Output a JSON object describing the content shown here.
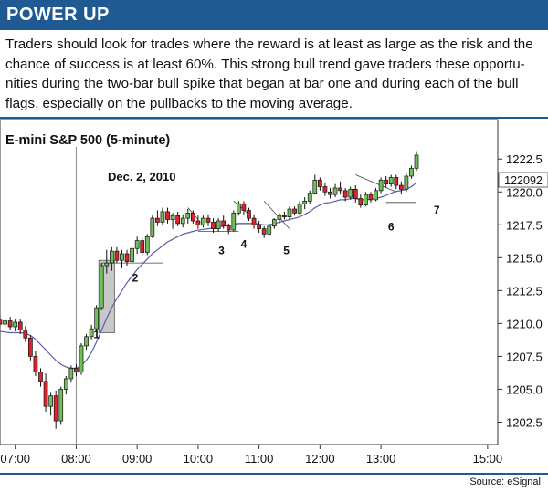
{
  "header": {
    "title": "POWER UP"
  },
  "intro": {
    "lines": [
      "Traders should look for trades where the reward is at least as large as the risk and the",
      "chance of success is at least 60%. This strong bull trend gave traders these opportu-",
      "nities during the two-bar bull spike that began at bar one and during each of the bull",
      "flags, especially on the pullbacks to the moving average."
    ]
  },
  "footer": {
    "source": "Source: eSignal"
  },
  "colors": {
    "accent": "#1f5a93",
    "bull": "#6fbf5a",
    "bear": "#d9252b",
    "ma": "#5a5fa8",
    "spike_box": "#c8c8c8"
  },
  "chart_data": {
    "type": "candlestick",
    "title": "E-mini S&P 500 (5-minute)",
    "annotation": "Dec. 2, 2010",
    "last_price_label": "122092",
    "y_ticks": [
      "1222.5",
      "1220.0",
      "1217.5",
      "1215.0",
      "1212.5",
      "1210.0",
      "1207.5",
      "1205.0",
      "1202.5"
    ],
    "y_tick_values": [
      1222.5,
      1220.0,
      1217.5,
      1215.0,
      1212.5,
      1210.0,
      1207.5,
      1205.0,
      1202.5
    ],
    "ylim": [
      1200.8,
      1225.5
    ],
    "x_ticks": [
      "07:00",
      "08:00",
      "09:00",
      "10:00",
      "11:00",
      "12:00",
      "13:00",
      "15:00"
    ],
    "x_tick_minutes": [
      420,
      480,
      540,
      600,
      660,
      720,
      780,
      885
    ],
    "xlim": [
      405,
      895
    ],
    "session_marker_minute": 480,
    "last_price": 1220.92,
    "bar_minutes": 5,
    "first_bar_minute": 405,
    "bars": [
      [
        1210.25,
        1210.6,
        1209.8,
        1209.95
      ],
      [
        1209.95,
        1210.4,
        1209.6,
        1210.2
      ],
      [
        1210.2,
        1210.5,
        1209.5,
        1209.75
      ],
      [
        1209.75,
        1210.3,
        1209.4,
        1210.1
      ],
      [
        1210.1,
        1210.3,
        1209.2,
        1209.5
      ],
      [
        1209.5,
        1209.8,
        1208.6,
        1208.9
      ],
      [
        1208.9,
        1209.1,
        1207.2,
        1207.5
      ],
      [
        1207.5,
        1207.9,
        1206.0,
        1206.3
      ],
      [
        1206.3,
        1206.6,
        1205.2,
        1205.6
      ],
      [
        1205.6,
        1206.2,
        1203.3,
        1203.7
      ],
      [
        1203.7,
        1204.8,
        1203.0,
        1204.5
      ],
      [
        1204.5,
        1204.9,
        1202.0,
        1202.6
      ],
      [
        1202.6,
        1205.2,
        1202.3,
        1205.0
      ],
      [
        1205.0,
        1206.0,
        1204.6,
        1205.8
      ],
      [
        1205.8,
        1206.8,
        1205.5,
        1206.6
      ],
      [
        1206.6,
        1206.9,
        1206.0,
        1206.3
      ],
      [
        1206.3,
        1208.5,
        1206.1,
        1208.3
      ],
      [
        1208.3,
        1209.2,
        1208.0,
        1209.0
      ],
      [
        1209.0,
        1209.9,
        1208.8,
        1209.6
      ],
      [
        1209.6,
        1211.4,
        1209.4,
        1211.2
      ],
      [
        1211.2,
        1214.6,
        1211.0,
        1214.4
      ],
      [
        1214.4,
        1215.6,
        1213.8,
        1214.6
      ],
      [
        1214.6,
        1215.8,
        1214.0,
        1215.5
      ],
      [
        1215.5,
        1215.8,
        1214.6,
        1214.8
      ],
      [
        1214.8,
        1215.6,
        1214.2,
        1215.3
      ],
      [
        1215.3,
        1215.6,
        1214.4,
        1214.7
      ],
      [
        1214.7,
        1215.9,
        1214.5,
        1215.7
      ],
      [
        1215.7,
        1216.6,
        1215.3,
        1216.3
      ],
      [
        1216.3,
        1216.5,
        1215.1,
        1215.4
      ],
      [
        1215.4,
        1216.8,
        1215.2,
        1216.6
      ],
      [
        1216.6,
        1218.2,
        1216.5,
        1218.0
      ],
      [
        1218.0,
        1218.6,
        1217.4,
        1217.7
      ],
      [
        1217.7,
        1218.8,
        1217.5,
        1218.5
      ],
      [
        1218.5,
        1218.8,
        1217.6,
        1217.9
      ],
      [
        1217.9,
        1218.4,
        1217.2,
        1218.2
      ],
      [
        1218.2,
        1218.5,
        1217.4,
        1217.6
      ],
      [
        1217.6,
        1218.3,
        1217.3,
        1218.0
      ],
      [
        1218.0,
        1218.7,
        1217.6,
        1218.4
      ],
      [
        1218.4,
        1218.6,
        1217.6,
        1217.8
      ],
      [
        1217.8,
        1218.2,
        1217.2,
        1217.5
      ],
      [
        1217.5,
        1218.2,
        1217.3,
        1218.0
      ],
      [
        1218.0,
        1218.3,
        1217.4,
        1217.7
      ],
      [
        1217.7,
        1218.0,
        1216.9,
        1217.2
      ],
      [
        1217.2,
        1218.0,
        1217.0,
        1217.8
      ],
      [
        1217.8,
        1218.2,
        1217.2,
        1217.4
      ],
      [
        1217.4,
        1217.6,
        1216.8,
        1217.1
      ],
      [
        1217.1,
        1218.6,
        1217.0,
        1218.4
      ],
      [
        1218.4,
        1219.3,
        1218.2,
        1219.1
      ],
      [
        1219.1,
        1219.3,
        1218.3,
        1218.6
      ],
      [
        1218.6,
        1218.8,
        1217.8,
        1218.0
      ],
      [
        1218.0,
        1218.3,
        1217.2,
        1217.5
      ],
      [
        1217.5,
        1217.8,
        1216.9,
        1217.2
      ],
      [
        1217.2,
        1217.4,
        1216.5,
        1216.8
      ],
      [
        1216.8,
        1217.6,
        1216.6,
        1217.4
      ],
      [
        1217.4,
        1218.0,
        1217.2,
        1217.9
      ],
      [
        1217.9,
        1218.4,
        1217.6,
        1218.2
      ],
      [
        1218.2,
        1218.5,
        1217.9,
        1218.1
      ],
      [
        1218.1,
        1218.9,
        1217.9,
        1218.7
      ],
      [
        1218.7,
        1218.9,
        1218.2,
        1218.4
      ],
      [
        1218.4,
        1219.3,
        1218.2,
        1219.1
      ],
      [
        1219.1,
        1219.6,
        1218.7,
        1219.3
      ],
      [
        1219.3,
        1220.1,
        1219.1,
        1219.9
      ],
      [
        1219.9,
        1221.3,
        1219.8,
        1220.9
      ],
      [
        1220.9,
        1221.1,
        1220.1,
        1220.4
      ],
      [
        1220.4,
        1220.7,
        1219.7,
        1220.0
      ],
      [
        1220.0,
        1220.3,
        1219.5,
        1219.8
      ],
      [
        1219.8,
        1220.6,
        1219.6,
        1220.3
      ],
      [
        1220.3,
        1220.8,
        1219.8,
        1220.1
      ],
      [
        1220.1,
        1220.3,
        1219.3,
        1219.6
      ],
      [
        1219.6,
        1220.4,
        1219.4,
        1220.2
      ],
      [
        1220.2,
        1220.5,
        1219.2,
        1219.5
      ],
      [
        1219.5,
        1219.8,
        1218.8,
        1219.0
      ],
      [
        1219.0,
        1220.0,
        1218.9,
        1219.8
      ],
      [
        1219.8,
        1220.0,
        1219.2,
        1219.4
      ],
      [
        1219.4,
        1220.3,
        1219.3,
        1220.1
      ],
      [
        1220.1,
        1221.1,
        1219.9,
        1220.9
      ],
      [
        1220.9,
        1221.2,
        1220.3,
        1220.6
      ],
      [
        1220.6,
        1221.3,
        1220.4,
        1221.1
      ],
      [
        1221.1,
        1221.3,
        1220.2,
        1220.5
      ],
      [
        1220.5,
        1220.8,
        1219.8,
        1220.2
      ],
      [
        1220.2,
        1221.4,
        1220.0,
        1221.2
      ],
      [
        1221.2,
        1222.0,
        1221.0,
        1221.8
      ],
      [
        1221.8,
        1223.1,
        1221.6,
        1222.8
      ]
    ],
    "ma_values": [
      1209.4,
      1209.35,
      1209.3,
      1209.3,
      1209.3,
      1209.25,
      1209.1,
      1208.8,
      1208.4,
      1208.0,
      1207.6,
      1207.2,
      1206.9,
      1206.7,
      1206.6,
      1206.6,
      1206.8,
      1207.2,
      1207.8,
      1208.6,
      1209.5,
      1210.4,
      1211.2,
      1211.9,
      1212.5,
      1213.1,
      1213.6,
      1214.1,
      1214.5,
      1214.9,
      1215.3,
      1215.6,
      1215.9,
      1216.2,
      1216.4,
      1216.6,
      1216.8,
      1216.9,
      1217.0,
      1217.1,
      1217.15,
      1217.2,
      1217.25,
      1217.3,
      1217.4,
      1217.45,
      1217.5,
      1217.6,
      1217.6,
      1217.6,
      1217.6,
      1217.55,
      1217.5,
      1217.5,
      1217.6,
      1217.7,
      1217.8,
      1217.9,
      1218.0,
      1218.1,
      1218.3,
      1218.5,
      1218.8,
      1219.0,
      1219.15,
      1219.2,
      1219.3,
      1219.4,
      1219.4,
      1219.5,
      1219.5,
      1219.4,
      1219.4,
      1219.45,
      1219.5,
      1219.6,
      1219.75,
      1219.9,
      1220.05,
      1220.1,
      1220.2,
      1220.4,
      1220.7
    ],
    "spike_box": {
      "from_minute": 505,
      "to_minute": 515,
      "low": 1209.3,
      "high": 1214.8
    },
    "pullback_lines": [
      {
        "from_minute": 505,
        "to_minute": 565,
        "from_price": 1214.6,
        "to_price": 1214.6
      },
      {
        "from_minute": 590,
        "to_minute": 600,
        "from_price": 1218.8,
        "to_price": 1217.9
      },
      {
        "from_minute": 600,
        "to_minute": 640,
        "from_price": 1217.0,
        "to_price": 1217.0
      },
      {
        "from_minute": 635,
        "to_minute": 660,
        "from_price": 1217.6,
        "to_price": 1217.6
      },
      {
        "from_minute": 635,
        "to_minute": 650,
        "from_price": 1219.3,
        "to_price": 1218.3
      },
      {
        "from_minute": 665,
        "to_minute": 690,
        "from_price": 1219.3,
        "to_price": 1217.2
      },
      {
        "from_minute": 755,
        "to_minute": 795,
        "from_price": 1221.3,
        "to_price": 1220.0
      },
      {
        "from_minute": 785,
        "to_minute": 815,
        "from_price": 1219.2,
        "to_price": 1219.2
      }
    ],
    "bar_labels": [
      {
        "text": "1",
        "minute": 500,
        "price": 1209.7
      },
      {
        "text": "2",
        "minute": 538,
        "price": 1214.0
      },
      {
        "text": "3",
        "minute": 623,
        "price": 1216.1
      },
      {
        "text": "4",
        "minute": 645,
        "price": 1216.6
      },
      {
        "text": "5",
        "minute": 687,
        "price": 1216.1
      },
      {
        "text": "6",
        "minute": 790,
        "price": 1217.9
      },
      {
        "text": "7",
        "minute": 835,
        "price": 1219.2
      }
    ]
  }
}
